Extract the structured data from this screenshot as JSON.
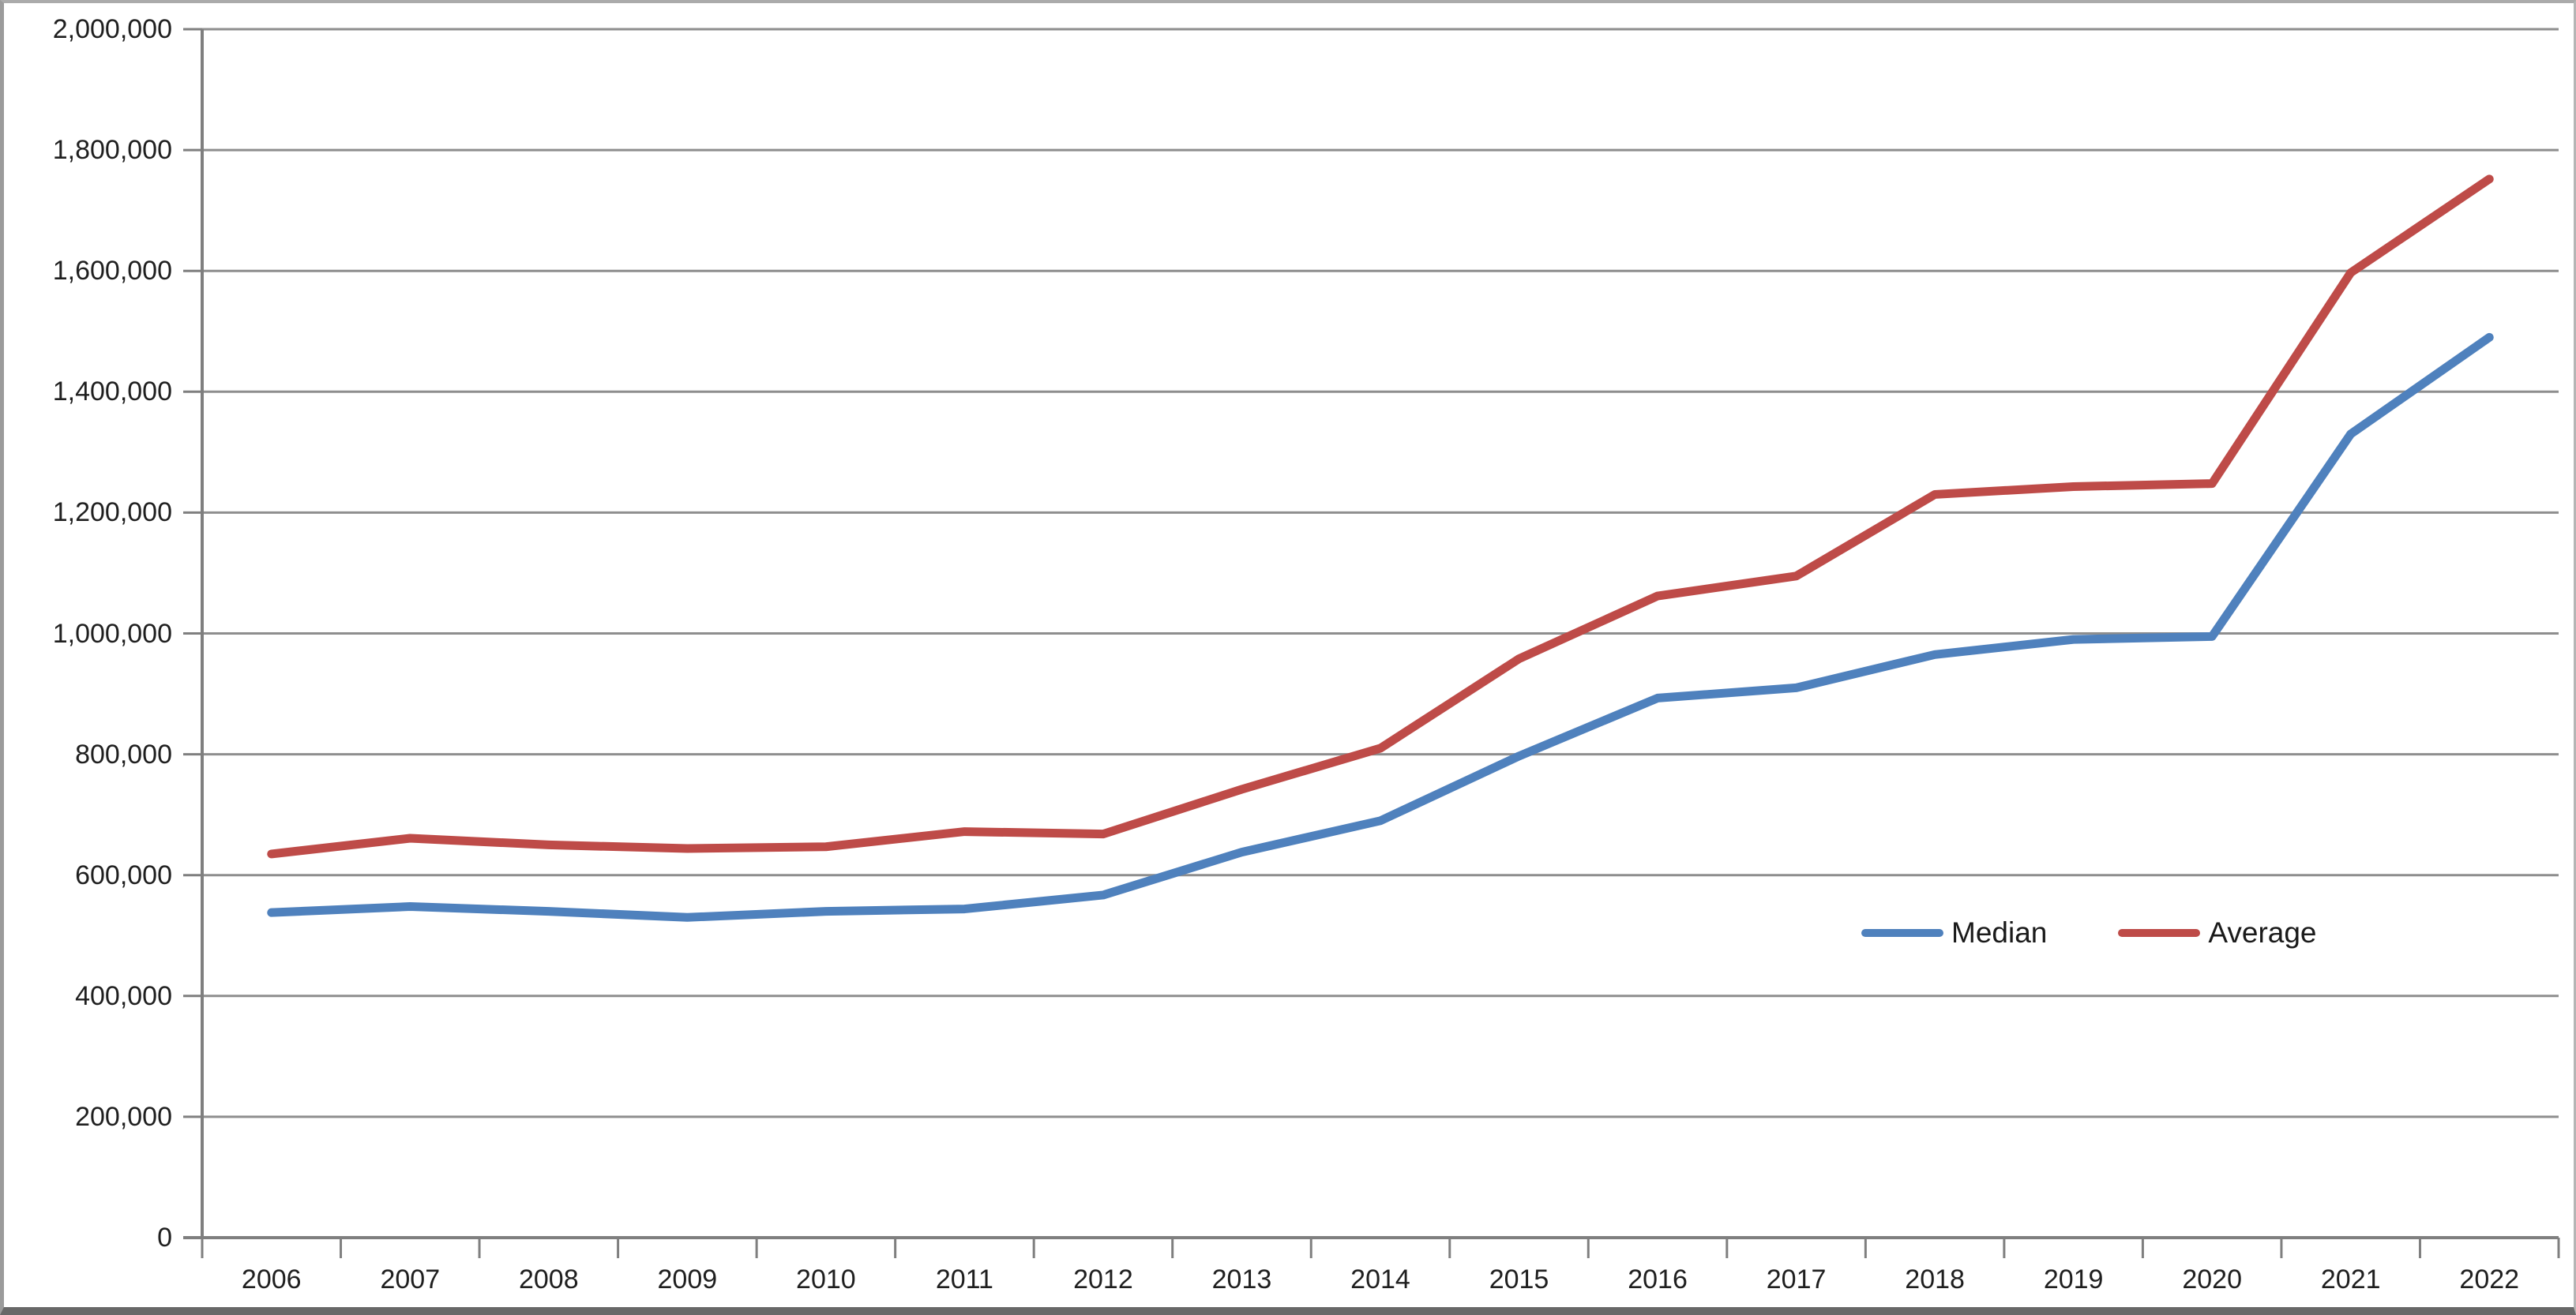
{
  "chart_data": {
    "type": "line",
    "title": "",
    "xlabel": "",
    "ylabel": "",
    "categories": [
      "2006",
      "2007",
      "2008",
      "2009",
      "2010",
      "2011",
      "2012",
      "2013",
      "2014",
      "2015",
      "2016",
      "2017",
      "2018",
      "2019",
      "2020",
      "2021",
      "2022"
    ],
    "series": [
      {
        "name": "Median",
        "color": "#4F81BD",
        "values": [
          538000,
          548000,
          540000,
          530000,
          540000,
          544000,
          567000,
          638000,
          690000,
          797000,
          893000,
          910000,
          965000,
          990000,
          995000,
          1330000,
          1490000
        ]
      },
      {
        "name": "Average",
        "color": "#BE4B48",
        "values": [
          635000,
          661000,
          650000,
          644000,
          647000,
          672000,
          668000,
          742000,
          810000,
          958000,
          1062000,
          1095000,
          1230000,
          1243000,
          1248000,
          1597000,
          1752000
        ]
      }
    ],
    "ylim": [
      0,
      2000000
    ],
    "ytick_step": 200000,
    "ytick_labels": [
      "0",
      "200,000",
      "400,000",
      "600,000",
      "800,000",
      "1,000,000",
      "1,200,000",
      "1,400,000",
      "1,600,000",
      "1,800,000",
      "2,000,000"
    ],
    "grid": "horizontal",
    "legend_position": "inside-right"
  },
  "styles": {
    "gridline_color": "#8e8e8e",
    "axis_color": "#7f7f7f",
    "tick_color": "#7f7f7f",
    "label_color": "#1f1f1f",
    "background_color": "#ffffff",
    "series_stroke_width": 11
  }
}
